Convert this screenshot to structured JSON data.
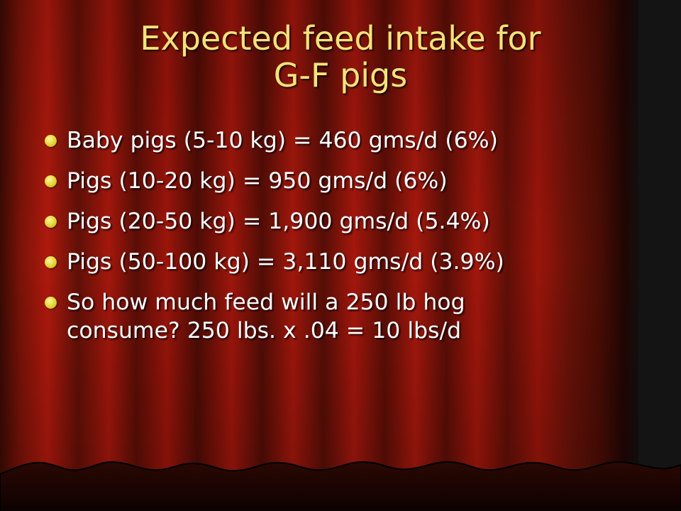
{
  "slide": {
    "title_lines": [
      "Expected feed intake for",
      "G-F pigs"
    ],
    "bullets": [
      {
        "lines": [
          "Baby pigs (5-10 kg) = 460 gms/d  (6%)"
        ]
      },
      {
        "lines": [
          "Pigs (10-20 kg) = 950 gms/d (6%)"
        ]
      },
      {
        "lines": [
          "Pigs (20-50 kg) = 1,900 gms/d (5.4%)"
        ]
      },
      {
        "lines": [
          "Pigs (50-100 kg) = 3,110 gms/d (3.9%)"
        ]
      },
      {
        "lines": [
          "So how much feed will a 250 lb hog",
          "consume?  250 lbs. x .04 = 10 lbs/d"
        ]
      }
    ]
  },
  "colors": {
    "title": "#f4e27a",
    "body_text": "#ffffff",
    "bullet": "#e2d430",
    "curtain_dark": "#3a0a04",
    "curtain_red": "#a8160c"
  },
  "icons": {
    "bullet": "bullet-dot-icon"
  }
}
